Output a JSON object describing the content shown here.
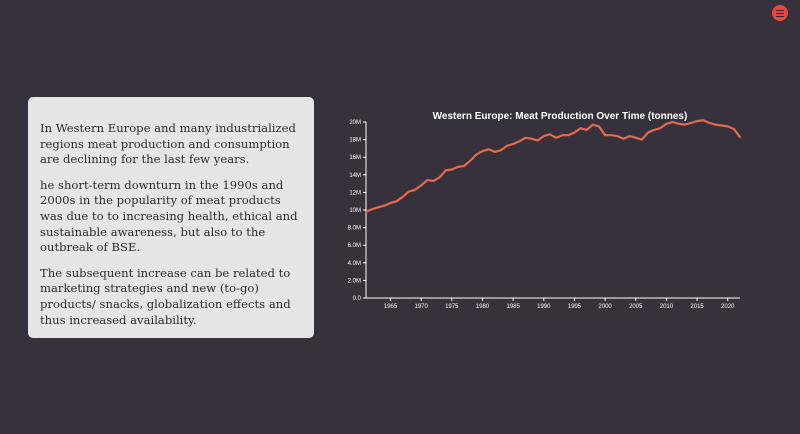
{
  "menu": {
    "icon": "hamburger-menu-icon",
    "color": "#e8473d"
  },
  "text_card": {
    "paragraphs": [
      "In Western Europe and many industrialized regions meat production and consumption are declining for the last few years.",
      "he short-term downturn in the 1990s and 2000s in the popularity of meat products was due to to increasing health, ethical and sustainable awareness, but also to the outbreak of BSE.",
      "The subsequent increase can be related to marketing strategies and new (to-go) products/ snacks, globalization effects and thus increased availability."
    ]
  },
  "chart_data": {
    "type": "line",
    "title": "Western Europe: Meat Production Over Time (tonnes)",
    "xlabel": "",
    "ylabel": "",
    "xlim": [
      1961,
      2022
    ],
    "ylim": [
      0,
      20000000
    ],
    "x_ticks": [
      1965,
      1970,
      1975,
      1980,
      1985,
      1990,
      1995,
      2000,
      2005,
      2010,
      2015,
      2020
    ],
    "y_ticks": [
      0,
      2000000,
      4000000,
      6000000,
      8000000,
      10000000,
      12000000,
      14000000,
      16000000,
      18000000,
      20000000
    ],
    "y_tick_labels": [
      "0.0",
      "2.0M",
      "4.0M",
      "6.0M",
      "8.0M",
      "10M",
      "12M",
      "14M",
      "16M",
      "18M",
      "20M"
    ],
    "grid": false,
    "legend": "none",
    "color": "#e36a4f",
    "x": [
      1961,
      1962,
      1963,
      1964,
      1965,
      1966,
      1967,
      1968,
      1969,
      1970,
      1971,
      1972,
      1973,
      1974,
      1975,
      1976,
      1977,
      1978,
      1979,
      1980,
      1981,
      1982,
      1983,
      1984,
      1985,
      1986,
      1987,
      1988,
      1989,
      1990,
      1991,
      1992,
      1993,
      1994,
      1995,
      1996,
      1997,
      1998,
      1999,
      2000,
      2001,
      2002,
      2003,
      2004,
      2005,
      2006,
      2007,
      2008,
      2009,
      2010,
      2011,
      2012,
      2013,
      2014,
      2015,
      2016,
      2017,
      2018,
      2019,
      2020,
      2021,
      2022
    ],
    "y": [
      9800000,
      10100000,
      10300000,
      10500000,
      10800000,
      11000000,
      11500000,
      12100000,
      12300000,
      12800000,
      13400000,
      13300000,
      13700000,
      14500000,
      14600000,
      14900000,
      15000000,
      15600000,
      16300000,
      16700000,
      16900000,
      16600000,
      16800000,
      17300000,
      17500000,
      17800000,
      18200000,
      18100000,
      17900000,
      18400000,
      18600000,
      18200000,
      18500000,
      18500000,
      18800000,
      19300000,
      19100000,
      19700000,
      19500000,
      18500000,
      18500000,
      18400000,
      18100000,
      18400000,
      18200000,
      18000000,
      18800000,
      19100000,
      19300000,
      19800000,
      20000000,
      19800000,
      19700000,
      19900000,
      20100000,
      20200000,
      19900000,
      19700000,
      19600000,
      19500000,
      19200000,
      18300000
    ]
  }
}
